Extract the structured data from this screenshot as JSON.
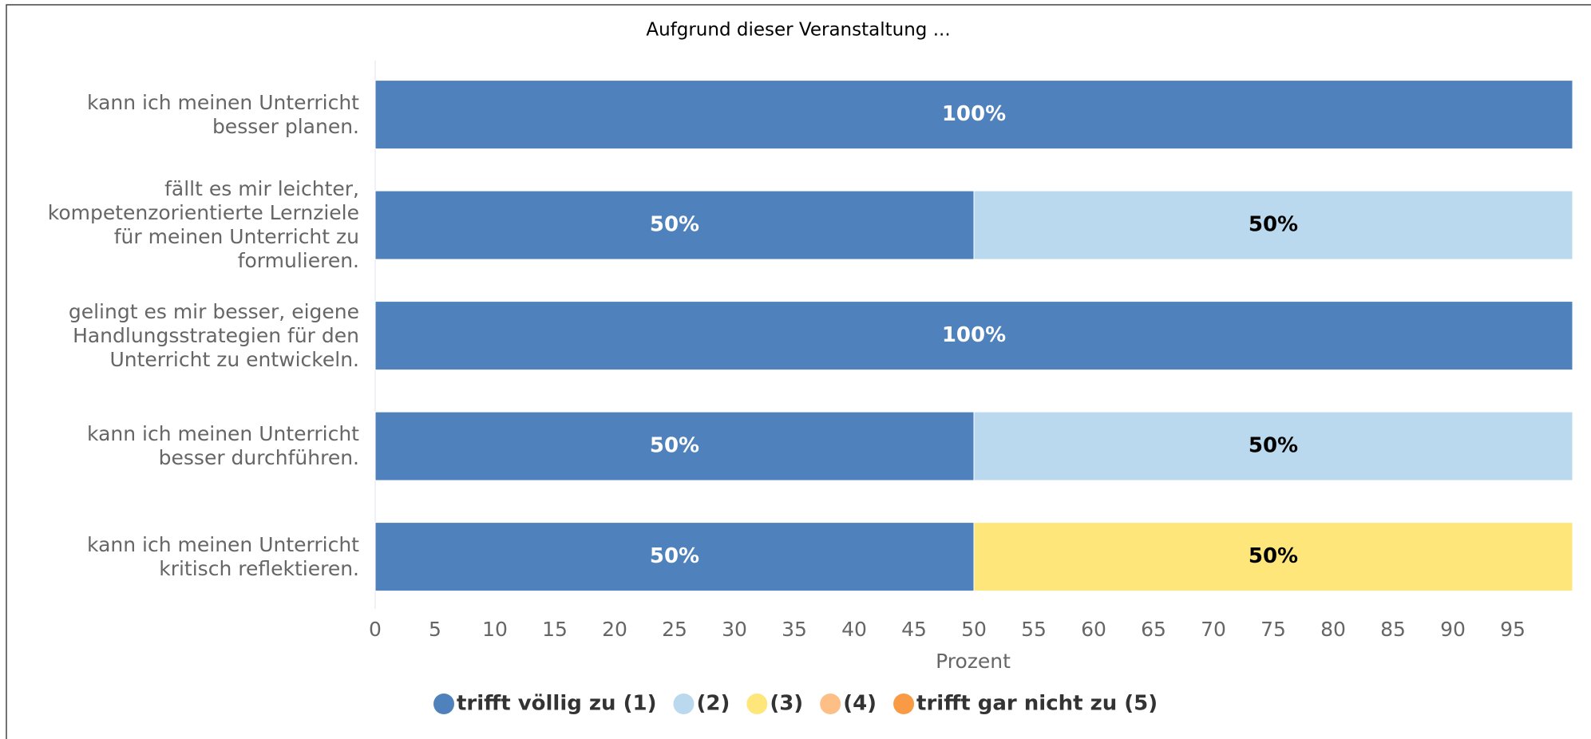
{
  "chart_data": {
    "type": "stacked_barh",
    "title": "Aufgrund dieser Veranstaltung ...",
    "x_label": "Prozent",
    "categories": [
      "kann ich meinen Unterricht\nbesser planen.",
      "fällt es mir leichter,\nkompetenzorientierte Lernziele\nfür meinen Unterricht zu\nformulieren.",
      "gelingt es mir besser, eigene\nHandlungsstrategien für den\nUnterricht zu entwickeln.",
      "kann ich meinen Unterricht\nbesser durchführen.",
      "kann ich meinen Unterricht\nkritisch reflektieren."
    ],
    "series": [
      {
        "name": "trifft völlig zu (1)",
        "color": "#4f81bd",
        "values": [
          100,
          50,
          100,
          50,
          50
        ],
        "value_labels": [
          "100%",
          "50%",
          "100%",
          "50%",
          "50%"
        ]
      },
      {
        "name": "(2)",
        "color": "#bad9ee",
        "values": [
          0,
          50,
          0,
          50,
          0
        ],
        "value_labels": [
          null,
          "50%",
          null,
          "50%",
          null
        ]
      },
      {
        "name": "(3)",
        "color": "#fee67b",
        "values": [
          0,
          0,
          0,
          0,
          50
        ],
        "value_labels": [
          null,
          null,
          null,
          null,
          "50%"
        ]
      },
      {
        "name": "(4)",
        "color": "#fdbf85",
        "values": [
          0,
          0,
          0,
          0,
          0
        ],
        "value_labels": [
          null,
          null,
          null,
          null,
          null
        ]
      },
      {
        "name": "trifft gar nicht zu (5)",
        "color": "#f99b45",
        "values": [
          0,
          0,
          0,
          0,
          0
        ],
        "value_labels": [
          null,
          null,
          null,
          null,
          null
        ]
      }
    ],
    "xlim": [
      0,
      100
    ],
    "xticks": [
      0,
      5,
      10,
      15,
      20,
      25,
      30,
      35,
      40,
      45,
      50,
      55,
      60,
      65,
      70,
      75,
      80,
      85,
      90,
      95
    ],
    "legend": "bottom"
  }
}
